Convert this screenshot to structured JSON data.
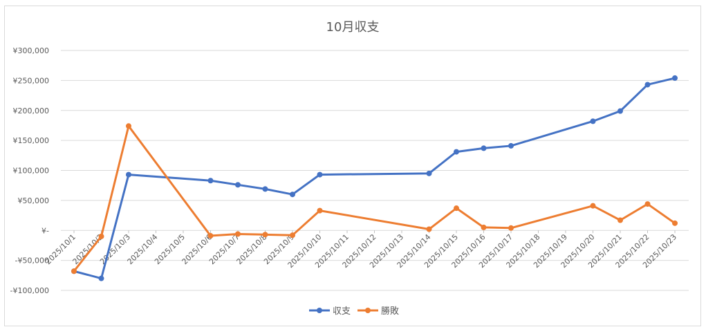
{
  "chart_data": {
    "type": "line",
    "title": "10月収支",
    "xlabel": "",
    "ylabel": "",
    "categories": [
      "2025/10/1",
      "2025/10/2",
      "2025/10/3",
      "2025/10/4",
      "2025/10/5",
      "2025/10/6",
      "2025/10/7",
      "2025/10/8",
      "2025/10/9",
      "2025/10/10",
      "2025/10/11",
      "2025/10/12",
      "2025/10/13",
      "2025/10/14",
      "2025/10/15",
      "2025/10/16",
      "2025/10/17",
      "2025/10/18",
      "2025/10/19",
      "2025/10/20",
      "2025/10/21",
      "2025/10/22",
      "2025/10/23"
    ],
    "ylim": [
      -100000,
      300000
    ],
    "yticks": [
      300000,
      250000,
      200000,
      150000,
      100000,
      50000,
      0,
      -50000,
      -100000
    ],
    "ytick_labels": [
      "¥300,000",
      "¥250,000",
      "¥200,000",
      "¥150,000",
      "¥100,000",
      "¥50,000",
      "¥-",
      "-¥50,000",
      "-¥100,000"
    ],
    "grid": true,
    "legend_position": "bottom",
    "series": [
      {
        "name": "収支",
        "color": "#4472c4",
        "points": [
          [
            "2025/10/1",
            -68000
          ],
          [
            "2025/10/2",
            -80000
          ],
          [
            "2025/10/3",
            93000
          ],
          [
            "2025/10/6",
            83000
          ],
          [
            "2025/10/7",
            76000
          ],
          [
            "2025/10/8",
            69000
          ],
          [
            "2025/10/9",
            60000
          ],
          [
            "2025/10/10",
            93000
          ],
          [
            "2025/10/14",
            95000
          ],
          [
            "2025/10/15",
            131000
          ],
          [
            "2025/10/16",
            137000
          ],
          [
            "2025/10/17",
            141000
          ],
          [
            "2025/10/20",
            182000
          ],
          [
            "2025/10/21",
            199000
          ],
          [
            "2025/10/22",
            243000
          ],
          [
            "2025/10/23",
            254000
          ]
        ]
      },
      {
        "name": "勝敗",
        "color": "#ed7d31",
        "points": [
          [
            "2025/10/1",
            -68000
          ],
          [
            "2025/10/2",
            -10000
          ],
          [
            "2025/10/3",
            174000
          ],
          [
            "2025/10/6",
            -9000
          ],
          [
            "2025/10/7",
            -6000
          ],
          [
            "2025/10/8",
            -7000
          ],
          [
            "2025/10/9",
            -8000
          ],
          [
            "2025/10/10",
            33000
          ],
          [
            "2025/10/14",
            2000
          ],
          [
            "2025/10/15",
            37000
          ],
          [
            "2025/10/16",
            5000
          ],
          [
            "2025/10/17",
            4000
          ],
          [
            "2025/10/20",
            41000
          ],
          [
            "2025/10/21",
            17000
          ],
          [
            "2025/10/22",
            44000
          ],
          [
            "2025/10/23",
            12000
          ]
        ]
      }
    ]
  }
}
